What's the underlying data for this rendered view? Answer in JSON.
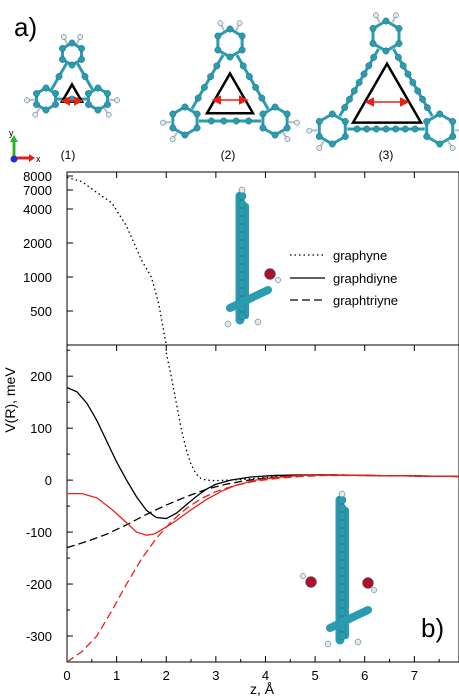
{
  "panel_a_label": "a)",
  "panel_b_label": "b)",
  "molecules": [
    {
      "label": "(1)"
    },
    {
      "label": "(2)"
    },
    {
      "label": "(3)"
    }
  ],
  "axis_triad": {
    "y": "y",
    "x": "x"
  },
  "colors": {
    "carbon": "#2b9bb0",
    "hydrogen": "#e6e6ec",
    "oxygen": "#b0102a",
    "arrow": "#e8201a",
    "red_series": "#e8201a",
    "black_series": "#000000"
  },
  "chart_data": {
    "type": "line",
    "xlabel": "z, Å",
    "ylabel": "V(R), meV",
    "xlim": [
      0,
      7.9
    ],
    "x_ticks": [
      "0",
      "1",
      "2",
      "3",
      "4",
      "5",
      "6",
      "7"
    ],
    "upper_y_ticks": [
      "8000",
      "7000",
      "4000",
      "2000",
      "1000",
      "500"
    ],
    "lower_y_ticks": [
      "200",
      "100",
      "0",
      "-100",
      "-200",
      "-300"
    ],
    "lower_ylim": [
      -350,
      260
    ],
    "legend": [
      "graphyne",
      "graphdiyne",
      "graphtriyne"
    ],
    "series": [
      {
        "name": "graphyne",
        "style": "dotted",
        "color": "black",
        "points": [
          [
            0,
            7900
          ],
          [
            0.3,
            7600
          ],
          [
            0.6,
            6600
          ],
          [
            0.9,
            5000
          ],
          [
            1.2,
            3000
          ],
          [
            1.5,
            1500
          ],
          [
            1.7,
            1000
          ],
          [
            1.85,
            600
          ],
          [
            2.0,
            245
          ],
          [
            2.1,
            200
          ],
          [
            2.2,
            150
          ],
          [
            2.3,
            100
          ],
          [
            2.4,
            60
          ],
          [
            2.5,
            30
          ],
          [
            2.6,
            12
          ],
          [
            2.7,
            3
          ],
          [
            2.8,
            0
          ],
          [
            3.0,
            -1
          ],
          [
            3.5,
            1
          ],
          [
            4.0,
            5
          ],
          [
            4.5,
            8
          ],
          [
            5.0,
            10
          ],
          [
            6.0,
            9
          ],
          [
            7.0,
            8
          ],
          [
            7.9,
            7
          ]
        ]
      },
      {
        "name": "graphdiyne",
        "style": "solid",
        "color": "black",
        "points": [
          [
            0,
            178
          ],
          [
            0.2,
            170
          ],
          [
            0.4,
            148
          ],
          [
            0.6,
            115
          ],
          [
            0.8,
            75
          ],
          [
            1.0,
            35
          ],
          [
            1.2,
            0
          ],
          [
            1.4,
            -32
          ],
          [
            1.6,
            -58
          ],
          [
            1.8,
            -72
          ],
          [
            2.0,
            -74
          ],
          [
            2.2,
            -64
          ],
          [
            2.4,
            -48
          ],
          [
            2.6,
            -32
          ],
          [
            2.8,
            -18
          ],
          [
            3.0,
            -8
          ],
          [
            3.3,
            0
          ],
          [
            3.7,
            6
          ],
          [
            4.2,
            9
          ],
          [
            4.7,
            10
          ],
          [
            5.2,
            10
          ],
          [
            6.0,
            9
          ],
          [
            7.0,
            8
          ],
          [
            7.9,
            7
          ]
        ]
      },
      {
        "name": "graphtriyne",
        "style": "dashed",
        "color": "black",
        "points": [
          [
            0,
            -130
          ],
          [
            0.4,
            -118
          ],
          [
            0.8,
            -104
          ],
          [
            1.2,
            -86
          ],
          [
            1.6,
            -66
          ],
          [
            2.0,
            -48
          ],
          [
            2.4,
            -32
          ],
          [
            2.8,
            -18
          ],
          [
            3.2,
            -8
          ],
          [
            3.6,
            -1
          ],
          [
            4.0,
            4
          ],
          [
            4.5,
            8
          ],
          [
            5.0,
            10
          ],
          [
            5.5,
            10
          ],
          [
            6.0,
            9
          ],
          [
            7.0,
            8
          ],
          [
            7.9,
            7
          ]
        ]
      },
      {
        "name": "",
        "style": "solid",
        "color": "red",
        "points": [
          [
            0,
            -26
          ],
          [
            0.3,
            -26
          ],
          [
            0.6,
            -34
          ],
          [
            0.9,
            -56
          ],
          [
            1.2,
            -82
          ],
          [
            1.4,
            -100
          ],
          [
            1.6,
            -106
          ],
          [
            1.75,
            -104
          ],
          [
            1.9,
            -96
          ],
          [
            2.2,
            -78
          ],
          [
            2.5,
            -57
          ],
          [
            2.8,
            -38
          ],
          [
            3.1,
            -22
          ],
          [
            3.4,
            -10
          ],
          [
            3.8,
            0
          ],
          [
            4.2,
            5
          ],
          [
            4.7,
            9
          ],
          [
            5.2,
            10
          ],
          [
            6.0,
            9
          ],
          [
            7.0,
            8
          ],
          [
            7.9,
            7
          ]
        ]
      },
      {
        "name": "",
        "style": "dashed",
        "color": "red",
        "points": [
          [
            0,
            -350
          ],
          [
            0.3,
            -330
          ],
          [
            0.6,
            -300
          ],
          [
            0.9,
            -252
          ],
          [
            1.2,
            -200
          ],
          [
            1.5,
            -152
          ],
          [
            1.8,
            -112
          ],
          [
            2.1,
            -80
          ],
          [
            2.4,
            -55
          ],
          [
            2.7,
            -36
          ],
          [
            3.0,
            -22
          ],
          [
            3.4,
            -10
          ],
          [
            3.8,
            -2
          ],
          [
            4.2,
            3
          ],
          [
            4.7,
            7
          ],
          [
            5.2,
            9
          ],
          [
            6.0,
            9
          ],
          [
            7.0,
            8
          ],
          [
            7.9,
            7
          ]
        ]
      }
    ]
  }
}
